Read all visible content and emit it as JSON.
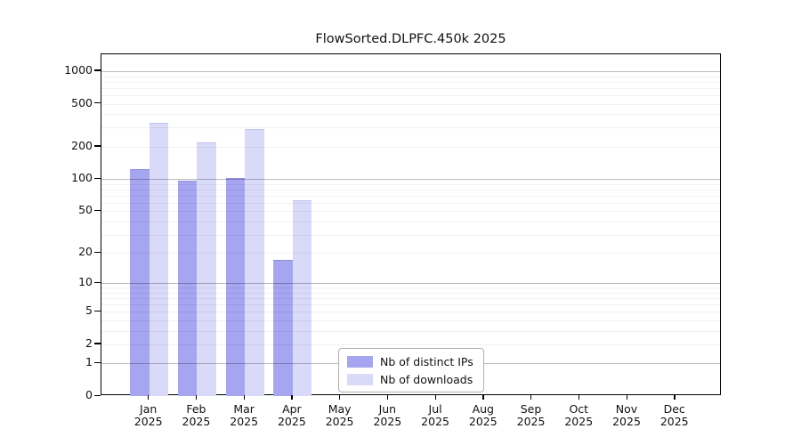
{
  "figure": {
    "title": "FlowSorted.DLPFC.450k 2025"
  },
  "chart_data": {
    "type": "bar",
    "title": "FlowSorted.DLPFC.450k 2025",
    "y_scale": "log10(1+x)",
    "ylim": [
      0,
      1434
    ],
    "grid": true,
    "legend_position": "bottom-center",
    "yticks": [
      0,
      1,
      2,
      5,
      10,
      20,
      50,
      100,
      200,
      500,
      1000
    ],
    "major_grid_values": [
      1,
      10,
      100,
      1000
    ],
    "minor_grid_bases": [
      1,
      10,
      100
    ],
    "months": [
      "Jan",
      "Feb",
      "Mar",
      "Apr",
      "May",
      "Jun",
      "Jul",
      "Aug",
      "Sep",
      "Oct",
      "Nov",
      "Dec"
    ],
    "year": "2025",
    "categories": [
      "Jan 2025",
      "Feb 2025",
      "Mar 2025",
      "Apr 2025",
      "May 2025",
      "Jun 2025",
      "Jul 2025",
      "Aug 2025",
      "Sep 2025",
      "Oct 2025",
      "Nov 2025",
      "Dec 2025"
    ],
    "series": [
      {
        "name": "Nb of distinct IPs",
        "color": "#a5a5f0",
        "border_color": "#8f8fe0",
        "values": [
          124,
          97,
          103,
          17,
          null,
          null,
          null,
          null,
          null,
          null,
          null,
          null
        ]
      },
      {
        "name": "Nb of downloads",
        "color": "#d9d9f8",
        "border_color": "#c3c3ee",
        "values": [
          331,
          218,
          291,
          63,
          null,
          null,
          null,
          null,
          null,
          null,
          null,
          null
        ]
      }
    ]
  }
}
